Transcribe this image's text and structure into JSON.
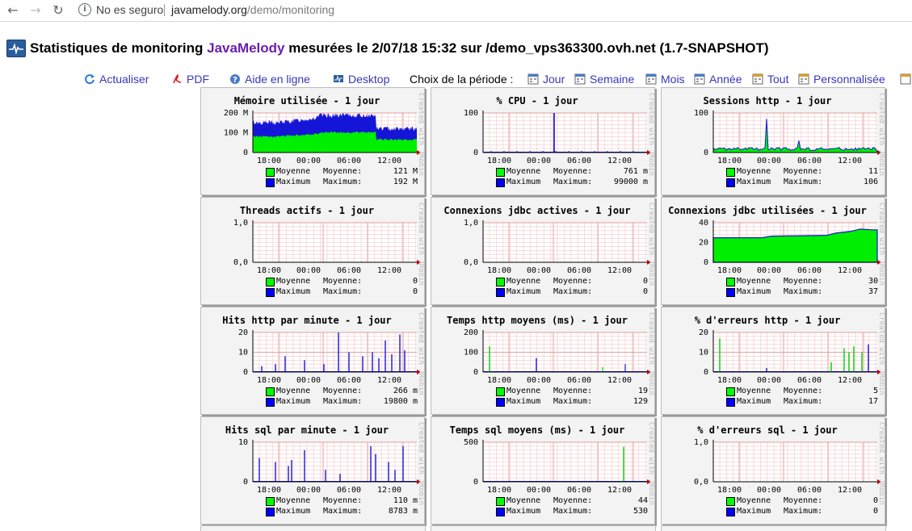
{
  "browser": {
    "back_icon": "arrow-left-icon",
    "forward_icon": "arrow-right-icon",
    "reload_icon": "reload-icon",
    "security_label": "No es seguro",
    "url_host": "javamelody.org",
    "url_path": "/demo/monitoring"
  },
  "header": {
    "title_prefix": "Statistiques de monitoring ",
    "title_brand": "JavaMelody",
    "title_suffix": " mesurées le 2/07/18 15:32 sur /demo_vps363300.ovh.net (1.7-SNAPSHOT)"
  },
  "menu": {
    "refresh": "Actualiser",
    "pdf": "PDF",
    "help": "Aide en ligne",
    "desktop": "Desktop",
    "period_label": "Choix de la période :",
    "periods": [
      "Jour",
      "Semaine",
      "Mois",
      "Année",
      "Tout",
      "Personnalisée"
    ]
  },
  "colors": {
    "avg": "#00ff00",
    "max": "#0000ff",
    "link": "#3a35b8",
    "brand": "#6b1fae"
  },
  "graphs": [
    {
      "title": "Mémoire utilisée - 1 jour",
      "ylabels": [
        "200 M",
        "100 M",
        "0"
      ],
      "kind": "memory",
      "avg_label": "Moyenne",
      "avg_value": "121 M",
      "max_label": "Maximum",
      "max_value": "192 M"
    },
    {
      "title": "% CPU - 1 jour",
      "ylabels": [
        "100",
        "0"
      ],
      "kind": "cpu",
      "avg_label": "Moyenne",
      "avg_value": "761 m",
      "max_label": "Maximum",
      "max_value": "99000 m"
    },
    {
      "title": "Sessions http - 1 jour",
      "ylabels": [
        "100",
        "0"
      ],
      "kind": "sessions",
      "avg_label": "Moyenne",
      "avg_value": "11",
      "max_label": "Maximum",
      "max_value": "106"
    },
    {
      "title": "Threads actifs - 1 jour",
      "ylabels": [
        "1,0",
        "0,0"
      ],
      "kind": "empty",
      "avg_label": "Moyenne",
      "avg_value": "0",
      "max_label": "Maximum",
      "max_value": "0"
    },
    {
      "title": "Connexions jdbc actives - 1 jour",
      "ylabels": [
        "1,0",
        "0,0"
      ],
      "kind": "empty",
      "avg_label": "Moyenne",
      "avg_value": "0",
      "max_label": "Maximum",
      "max_value": "0"
    },
    {
      "title": "Connexions jdbc utilisées - 1 jour",
      "ylabels": [
        "40",
        "20",
        "0"
      ],
      "kind": "jdbc",
      "avg_label": "Moyenne",
      "avg_value": "30",
      "max_label": "Maximum",
      "max_value": "37"
    },
    {
      "title": "Hits http par minute - 1 jour",
      "ylabels": [
        "20",
        "10",
        "0"
      ],
      "kind": "hits",
      "avg_label": "Moyenne",
      "avg_value": "266 m",
      "max_label": "Maximum",
      "max_value": "19800 m"
    },
    {
      "title": "Temps http moyens (ms) - 1 jour",
      "ylabels": [
        "200",
        "100",
        "0"
      ],
      "kind": "httptime",
      "avg_label": "Moyenne",
      "avg_value": "19",
      "max_label": "Maximum",
      "max_value": "129"
    },
    {
      "title": "% d'erreurs http - 1 jour",
      "ylabels": [
        "20",
        "10",
        "0"
      ],
      "kind": "errors",
      "avg_label": "Moyenne",
      "avg_value": "5",
      "max_label": "Maximum",
      "max_value": "17"
    },
    {
      "title": "Hits sql par minute - 1 jour",
      "ylabels": [
        "10",
        "0"
      ],
      "kind": "sqlhits",
      "avg_label": "Moyenne",
      "avg_value": "110 m",
      "max_label": "Maximum",
      "max_value": "8783 m"
    },
    {
      "title": "Temps sql moyens (ms) - 1 jour",
      "ylabels": [
        "500",
        "0"
      ],
      "kind": "sqltime",
      "avg_label": "Moyenne",
      "avg_value": "44",
      "max_label": "Maximum",
      "max_value": "530"
    },
    {
      "title": "% d'erreurs sql - 1 jour",
      "ylabels": [
        "1,0",
        "0,0"
      ],
      "kind": "empty",
      "avg_label": "Moyenne",
      "avg_value": "0",
      "max_label": "Maximum",
      "max_value": "0"
    }
  ],
  "xlabels": [
    "18:00",
    "00:00",
    "06:00",
    "12:00"
  ],
  "credit": "Created with JRobin"
}
